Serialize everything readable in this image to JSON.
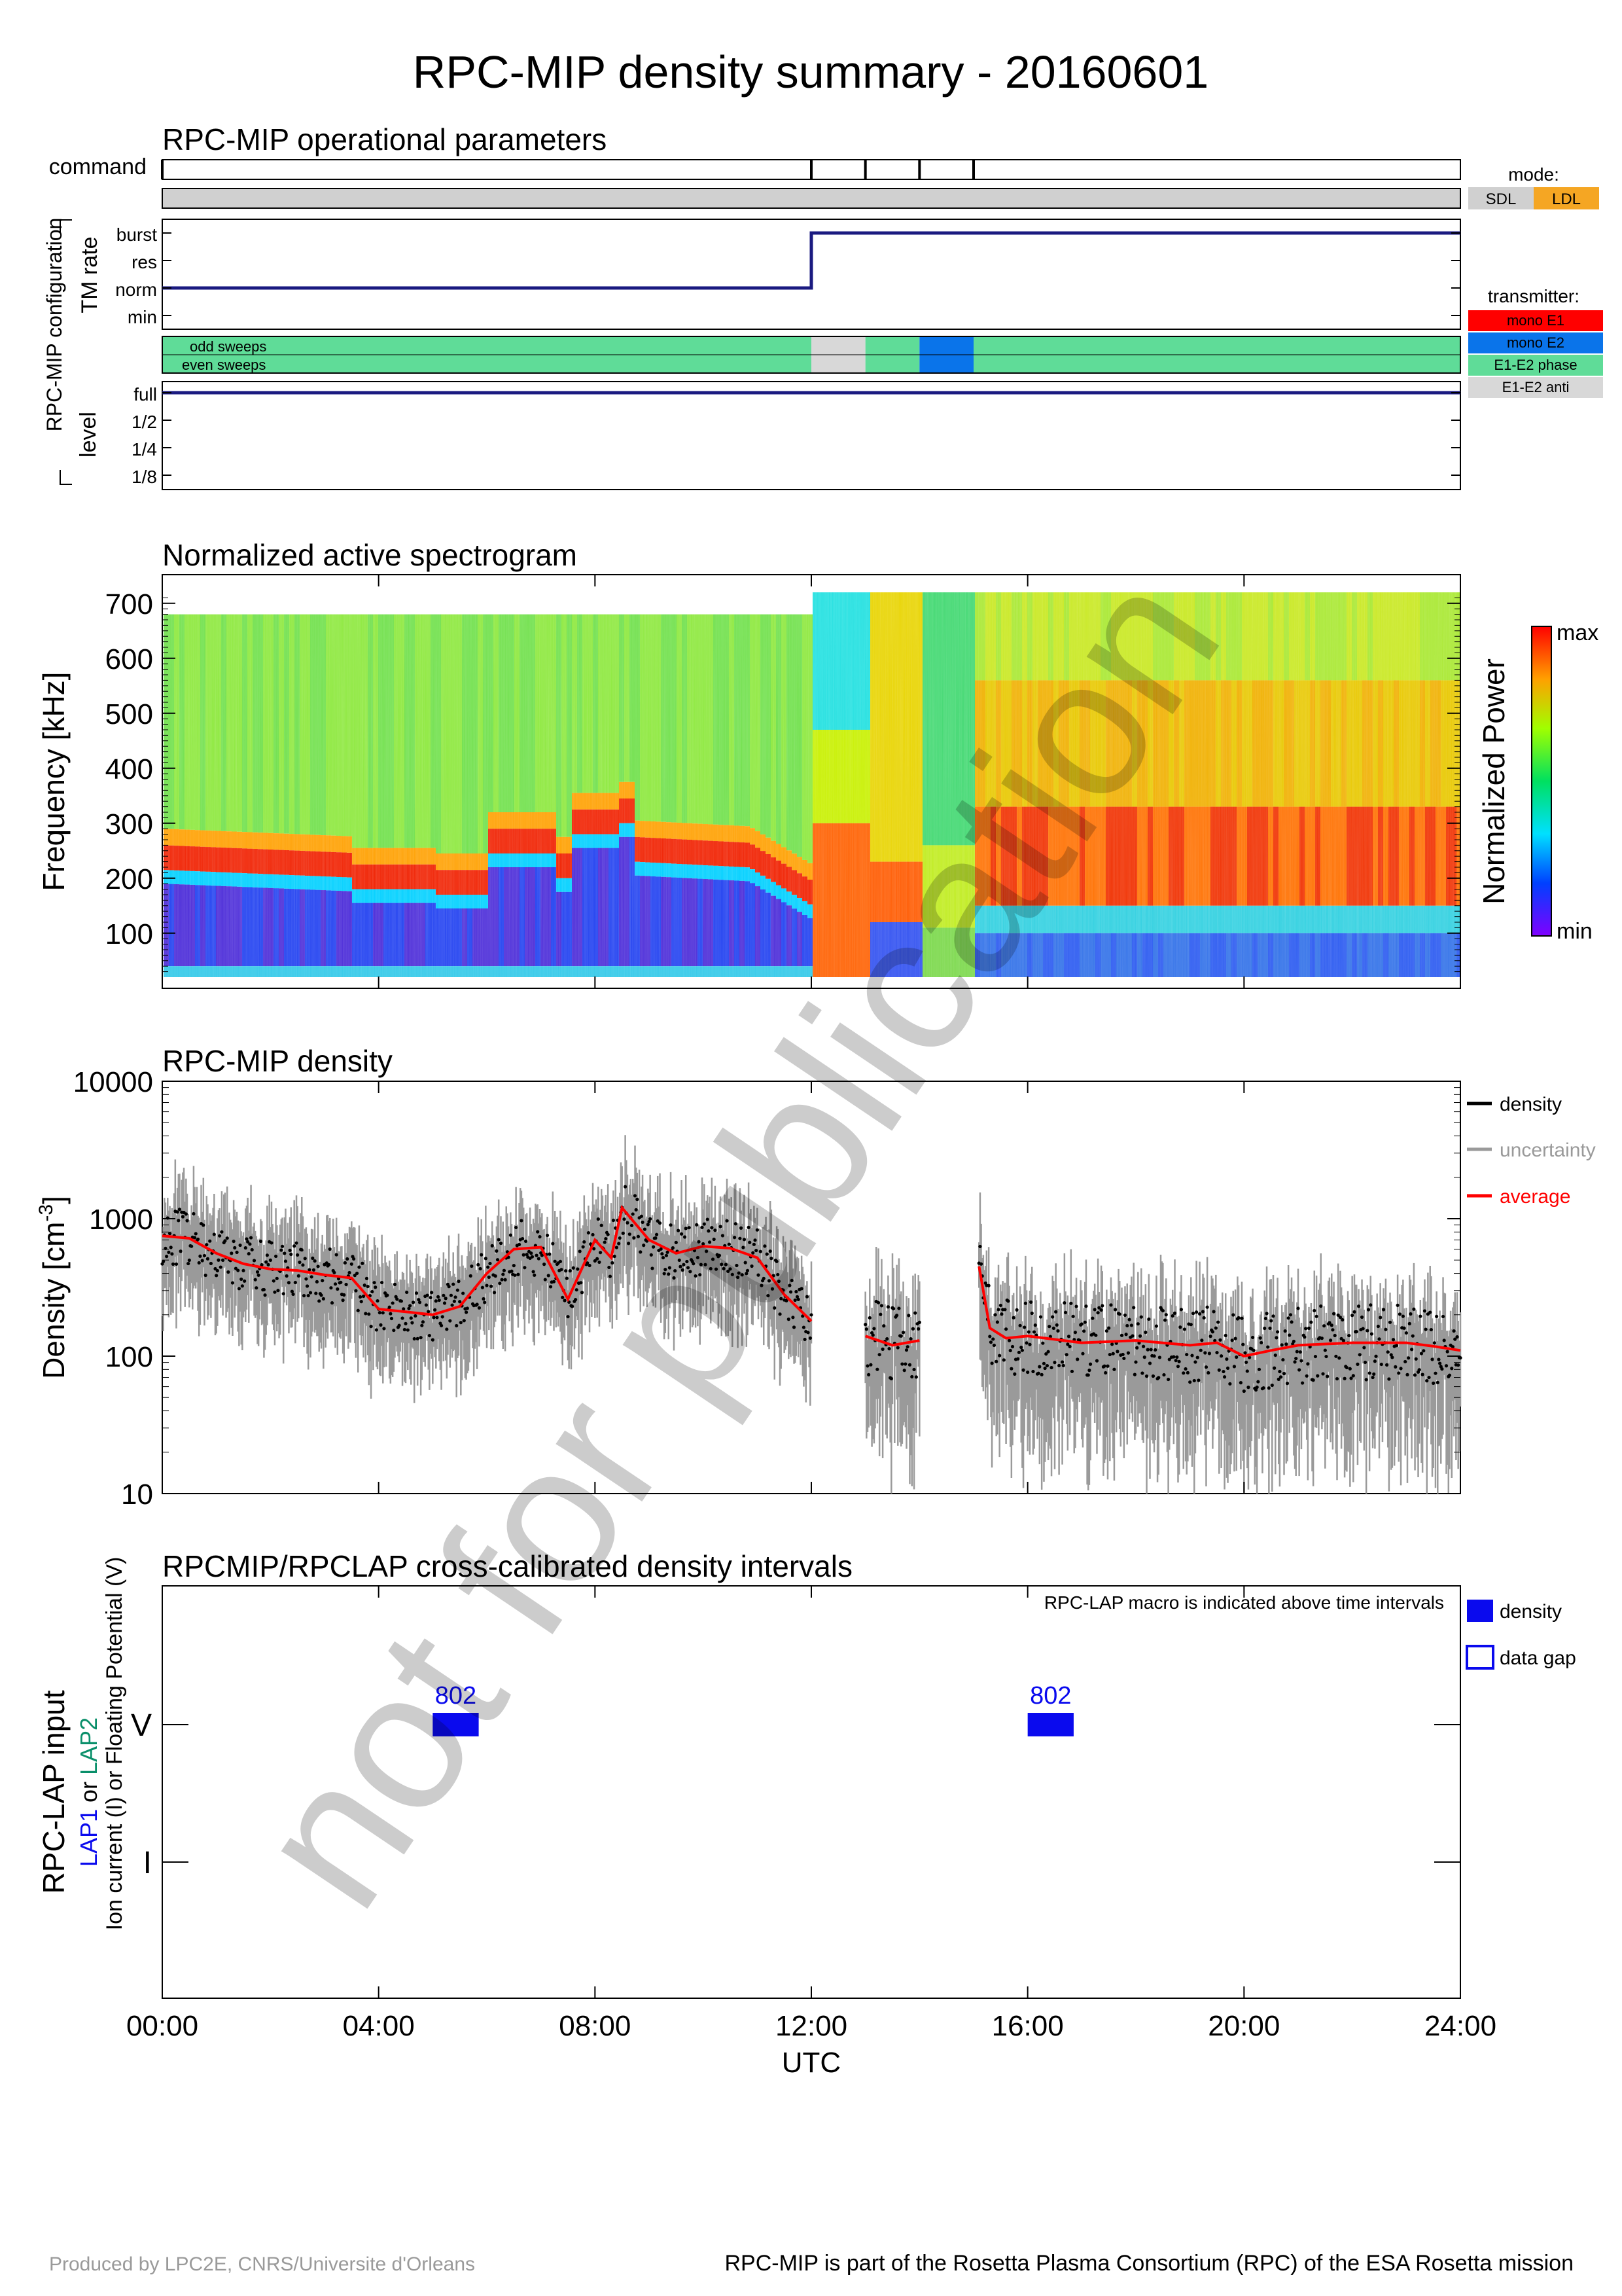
{
  "title": "RPC-MIP density summary - 20160601",
  "watermark": "not for publication",
  "footer": {
    "left": "Produced by LPC2E, CNRS/Universite d'Orleans",
    "right": "RPC-MIP is part of the Rosetta Plasma Consortium (RPC) of the ESA Rosetta mission"
  },
  "colors": {
    "navy": "#1a1a80",
    "sdl": "#d0d0d0",
    "ldl": "#f5a623",
    "mono_e1": "#ff0000",
    "mono_e2": "#0a74ea",
    "e1e2_phase": "#5fdc98",
    "e1e2_anti": "#d8d8d8",
    "lap_blue": "#0a0aee",
    "lap2_green": "#0a8f6a"
  },
  "time_axis": {
    "xlabel": "UTC",
    "xlim_hours": [
      0,
      24
    ],
    "ticks": [
      "00:00",
      "04:00",
      "08:00",
      "12:00",
      "16:00",
      "20:00",
      "24:00"
    ],
    "tick_hours": [
      0,
      4,
      8,
      12,
      16,
      20,
      24
    ]
  },
  "ops": {
    "title": "RPC-MIP operational parameters",
    "command_label": "command",
    "command_ticks_hours": [
      0,
      12,
      13,
      14,
      15
    ],
    "mode_label": "mode:",
    "mode_options": [
      "SDL",
      "LDL"
    ],
    "mode_segments": [
      {
        "from": 0,
        "to": 24,
        "mode": "SDL"
      }
    ],
    "config_group_label": "RPC-MIP configuration",
    "tm_rate_label": "TM rate",
    "tm_rate_levels": [
      "burst",
      "res",
      "norm",
      "min"
    ],
    "tm_rate_steps": [
      {
        "from": 0,
        "to": 12,
        "level": "norm"
      },
      {
        "from": 12,
        "to": 24,
        "level": "burst"
      }
    ],
    "sweep_labels": [
      "odd sweeps",
      "even sweeps"
    ],
    "transmitter_label": "transmitter:",
    "transmitter_options": [
      "mono E1",
      "mono E2",
      "E1-E2 phase",
      "E1-E2 anti"
    ],
    "transmitter_segments": [
      {
        "from": 0,
        "to": 12,
        "tx": "E1-E2 phase"
      },
      {
        "from": 12,
        "to": 13,
        "tx": "E1-E2 anti"
      },
      {
        "from": 13,
        "to": 14,
        "tx": "E1-E2 phase"
      },
      {
        "from": 14,
        "to": 15,
        "tx": "mono E2"
      },
      {
        "from": 15,
        "to": 24,
        "tx": "E1-E2 phase"
      }
    ],
    "level_label": "level",
    "level_levels": [
      "full",
      "1/2",
      "1/4",
      "1/8"
    ],
    "level_steps": [
      {
        "from": 0,
        "to": 24,
        "level": "full"
      }
    ]
  },
  "spectrogram": {
    "title": "Normalized active spectrogram",
    "ylabel": "Frequency [kHz]",
    "yticks": [
      "700",
      "600",
      "500",
      "400",
      "300",
      "200",
      "100"
    ],
    "ytick_values": [
      700,
      600,
      500,
      400,
      300,
      200,
      100
    ],
    "ylim": [
      20,
      720
    ],
    "colorbar_label": "Normalized Power",
    "colorbar_max": "max",
    "colorbar_min": "min"
  },
  "chart_data": {
    "type": "scatter",
    "title": "RPC-MIP density",
    "xlabel": "UTC",
    "ylabel_main": "Density [cm",
    "ylabel_sup": "-3",
    "ylabel_end": "]",
    "yscale": "log",
    "ylim": [
      10,
      10000
    ],
    "yticks": [
      "10000",
      "1000",
      "100",
      "10"
    ],
    "ytick_values": [
      10000,
      1000,
      100,
      10
    ],
    "xlim_hours": [
      0,
      24
    ],
    "legend": [
      "density",
      "uncertainty",
      "average"
    ],
    "legend_colors": [
      "#000000",
      "#9a9a9a",
      "#ff0000"
    ],
    "legend_placement": "right",
    "series": [
      {
        "name": "average",
        "x_hours": [
          0,
          0.5,
          1,
          1.5,
          2,
          2.5,
          3,
          3.5,
          4,
          4.5,
          5,
          5.5,
          6,
          6.5,
          7,
          7.5,
          8,
          8.3,
          8.5,
          9,
          9.5,
          10,
          10.5,
          11,
          11.5,
          12
        ],
        "y": [
          750,
          720,
          560,
          470,
          430,
          420,
          390,
          370,
          220,
          210,
          200,
          230,
          400,
          600,
          620,
          260,
          700,
          520,
          1200,
          700,
          560,
          630,
          610,
          520,
          280,
          180
        ]
      },
      {
        "name": "average",
        "x_hours": [
          13,
          13.5,
          14
        ],
        "y": [
          140,
          120,
          130
        ]
      },
      {
        "name": "average",
        "x_hours": [
          15.1,
          15.3,
          15.6,
          16,
          17,
          18,
          19,
          19.5,
          20,
          20.5,
          21,
          22,
          23,
          23.5,
          24
        ],
        "y": [
          450,
          160,
          135,
          140,
          125,
          130,
          120,
          125,
          100,
          110,
          120,
          125,
          125,
          118,
          110
        ]
      }
    ]
  },
  "lap": {
    "title": "RPCMIP/RPCLAP cross-calibrated density intervals",
    "ylabel1": "RPC-LAP input",
    "ylabel2_a": "LAP1",
    "ylabel2_b": " or ",
    "ylabel2_c": "LAP2",
    "ylabel3": "Ion current (I) or Floating Potential (V)",
    "yticks": [
      "V",
      "I"
    ],
    "note": "RPC-LAP macro is indicated above time intervals",
    "legend": [
      "density",
      "data gap"
    ],
    "intervals": [
      {
        "from": 5.0,
        "to": 5.85,
        "row": "V",
        "macro": "802"
      },
      {
        "from": 16.0,
        "to": 16.85,
        "row": "V",
        "macro": "802"
      }
    ]
  }
}
